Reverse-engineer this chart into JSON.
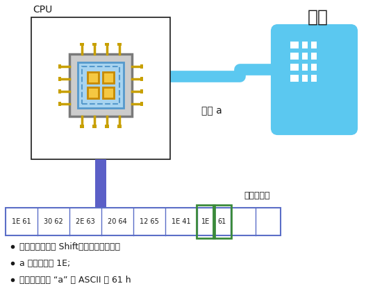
{
  "cpu_label": "CPU",
  "keyboard_label": "键盘",
  "input_label": "输入 a",
  "buffer_label": "键盘缓冲区",
  "cells": [
    "1E 61",
    "30 62",
    "2E 63",
    "20 64",
    "12 65",
    "1E 41",
    "1E",
    "61",
    "",
    ""
  ],
  "highlight_cells": [
    6,
    7
  ],
  "bullet_points": [
    "没有按下切换键 Shift，所以为小写字母",
    "a 键的扫描码 1E;",
    "键盘输入字母 “a” 的 ASCII 码 61 h"
  ],
  "bg_color": "#ffffff",
  "cpu_box_color": "#1a1a1a",
  "cell_border_color": "#5b6ec7",
  "highlight_border_color": "#3a8a3a",
  "arrow_color": "#5bc8f0",
  "vertical_bar_color": "#5b5fc7",
  "text_color": "#1a1a1a",
  "chip_gray": "#cccccc",
  "chip_gray_border": "#7a7a7a",
  "chip_blue": "#a8d4f0",
  "chip_blue_border": "#5599cc",
  "chip_gold": "#f5c842",
  "chip_gold_border": "#c88a00",
  "pin_color": "#c8a000",
  "pin_tip_color": "#c8a000"
}
